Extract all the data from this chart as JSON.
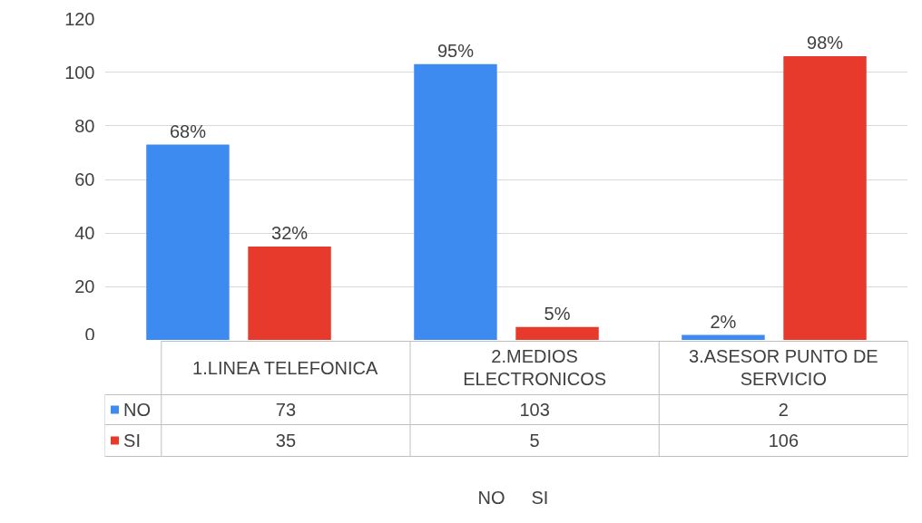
{
  "chart_data": {
    "type": "bar",
    "categories": [
      "1.LINEA TELEFONICA",
      "2.MEDIOS ELECTRONICOS",
      "3.ASESOR PUNTO DE SERVICIO"
    ],
    "series": [
      {
        "name": "NO",
        "color": "#3d8af0",
        "values": [
          73,
          103,
          2
        ]
      },
      {
        "name": "SI",
        "color": "#e8392d",
        "values": [
          35,
          5,
          106
        ]
      }
    ],
    "annotations": [
      "68%",
      "32%",
      "95%",
      "5%",
      "2%",
      "98%"
    ],
    "ylim": [
      0,
      120
    ],
    "yticks": [
      0,
      20,
      40,
      60,
      80,
      100,
      120
    ],
    "grid": "y",
    "legend": "bottom",
    "data_labels": true
  }
}
